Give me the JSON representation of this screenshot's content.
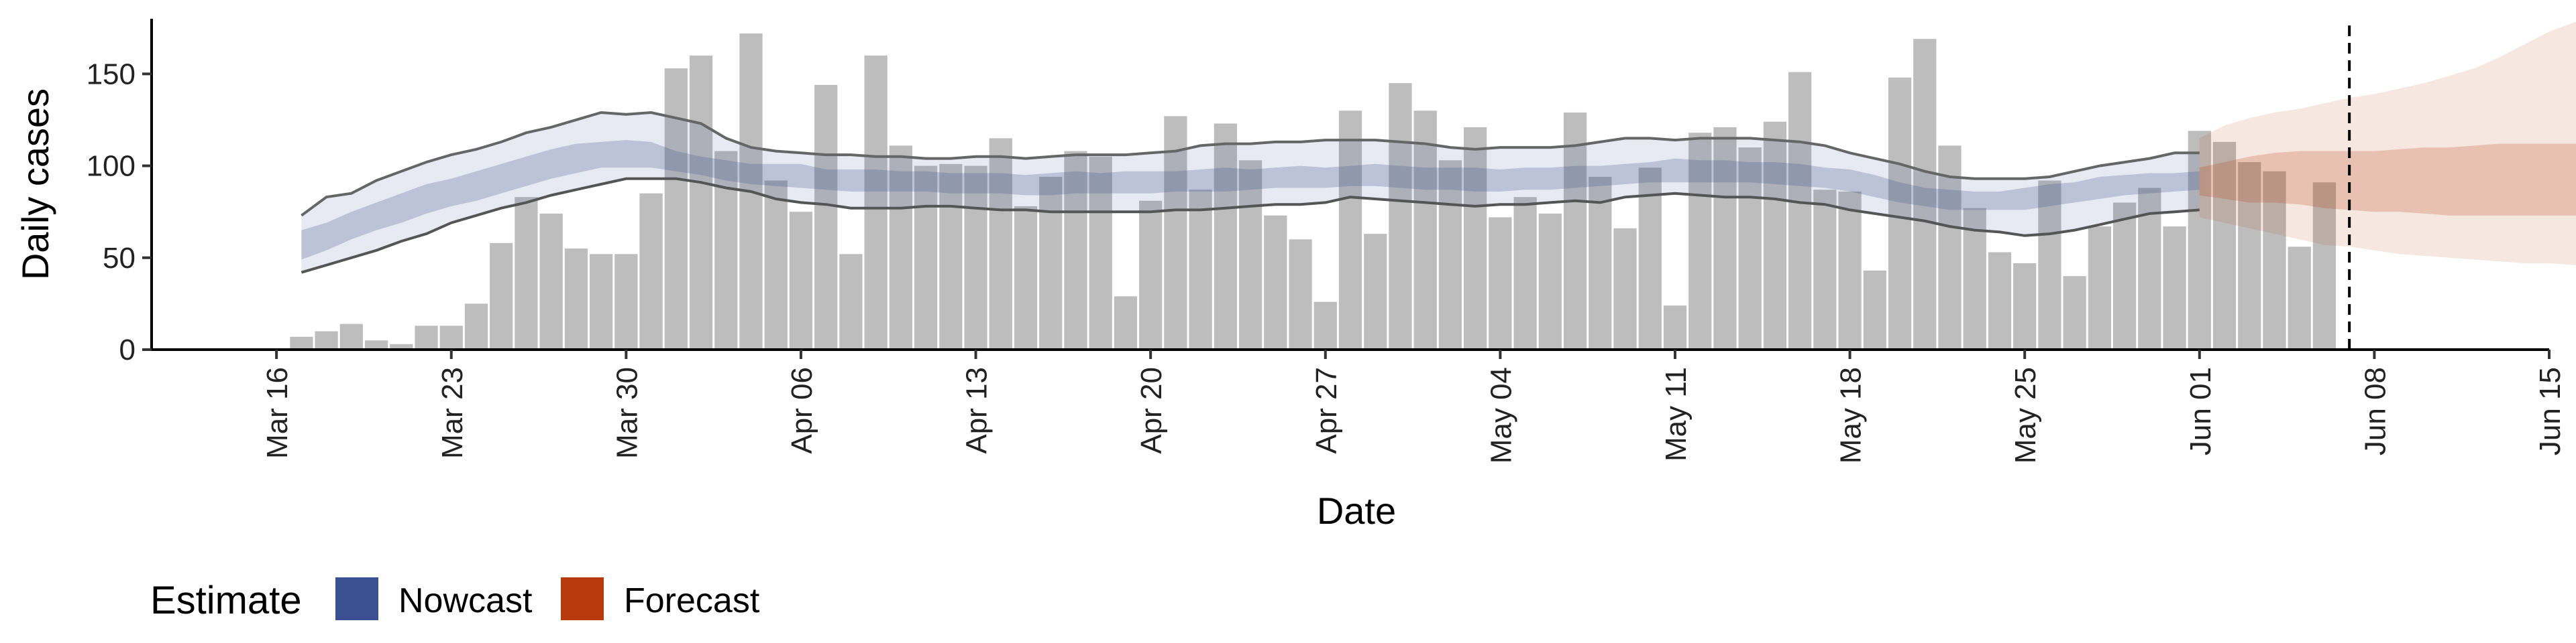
{
  "chart_data": {
    "type": "bar",
    "xlabel": "Date",
    "ylabel": "Daily cases",
    "ylim": [
      0,
      180
    ],
    "x_ticks": [
      "2020-03-16",
      "2020-03-23",
      "2020-03-30",
      "2020-04-06",
      "2020-04-13",
      "2020-04-20",
      "2020-04-27",
      "2020-05-04",
      "2020-05-11",
      "2020-05-18",
      "2020-05-25",
      "2020-06-01",
      "2020-06-08",
      "2020-06-15"
    ],
    "x_tick_labels": [
      "Mar 16",
      "Mar 23",
      "Mar 30",
      "Apr 06",
      "Apr 13",
      "Apr 20",
      "Apr 27",
      "May 04",
      "May 11",
      "May 18",
      "May 25",
      "Jun 01",
      "Jun 08",
      "Jun 15"
    ],
    "y_ticks": [
      0,
      50,
      100,
      150
    ],
    "bars": {
      "start_date": "2020-03-17",
      "color": "#bdbdbd",
      "values": [
        7,
        10,
        14,
        5,
        3,
        13,
        13,
        25,
        58,
        83,
        74,
        55,
        52,
        52,
        85,
        153,
        160,
        108,
        172,
        92,
        75,
        144,
        52,
        160,
        111,
        100,
        101,
        100,
        115,
        78,
        94,
        108,
        105,
        29,
        81,
        127,
        87,
        123,
        103,
        73,
        60,
        26,
        130,
        63,
        145,
        130,
        103,
        121,
        72,
        83,
        74,
        129,
        94,
        66,
        99,
        24,
        118,
        121,
        110,
        124,
        151,
        87,
        86,
        43,
        148,
        169,
        111,
        77,
        53,
        47,
        92,
        40,
        67,
        80,
        88,
        67,
        119,
        113,
        102,
        97,
        56,
        91
      ]
    },
    "nowcast": {
      "name": "Nowcast",
      "color": "#3a5090",
      "start_date": "2020-03-17",
      "outer_upper": [
        73,
        83,
        85,
        92,
        97,
        102,
        106,
        109,
        113,
        118,
        121,
        125,
        129,
        128,
        129,
        126,
        123,
        115,
        110,
        108,
        107,
        106,
        106,
        105,
        105,
        104,
        104,
        105,
        105,
        104,
        105,
        106,
        106,
        106,
        107,
        108,
        111,
        112,
        112,
        113,
        113,
        114,
        114,
        114,
        113,
        112,
        110,
        109,
        110,
        110,
        110,
        111,
        113,
        115,
        115,
        114,
        115,
        115,
        115,
        114,
        113,
        111,
        107,
        104,
        101,
        97,
        94,
        93,
        93,
        93,
        94,
        97,
        100,
        102,
        104,
        107,
        107
      ],
      "outer_lower": [
        42,
        46,
        50,
        54,
        59,
        63,
        69,
        73,
        77,
        80,
        84,
        87,
        90,
        93,
        93,
        93,
        91,
        88,
        86,
        82,
        80,
        79,
        77,
        77,
        77,
        78,
        78,
        77,
        76,
        76,
        75,
        75,
        75,
        75,
        75,
        76,
        76,
        77,
        78,
        79,
        79,
        80,
        83,
        82,
        81,
        80,
        79,
        78,
        79,
        79,
        80,
        81,
        80,
        83,
        84,
        85,
        84,
        83,
        83,
        82,
        80,
        79,
        76,
        74,
        72,
        70,
        67,
        65,
        64,
        62,
        63,
        65,
        68,
        71,
        74,
        75,
        76
      ],
      "inner_upper": [
        65,
        69,
        75,
        80,
        85,
        90,
        93,
        97,
        101,
        105,
        109,
        112,
        113,
        114,
        113,
        108,
        105,
        103,
        101,
        101,
        101,
        98,
        98,
        98,
        97,
        97,
        96,
        96,
        96,
        95,
        96,
        97,
        96,
        97,
        97,
        97,
        98,
        99,
        98,
        99,
        100,
        99,
        100,
        101,
        100,
        99,
        99,
        99,
        98,
        99,
        99,
        100,
        100,
        101,
        102,
        104,
        103,
        103,
        102,
        102,
        101,
        99,
        98,
        95,
        91,
        88,
        87,
        86,
        86,
        88,
        90,
        91,
        94,
        95,
        96,
        96,
        97
      ],
      "inner_lower": [
        49,
        54,
        60,
        65,
        69,
        74,
        78,
        81,
        85,
        89,
        93,
        96,
        99,
        99,
        99,
        97,
        95,
        92,
        90,
        89,
        88,
        87,
        86,
        86,
        86,
        86,
        85,
        85,
        85,
        84,
        84,
        85,
        85,
        85,
        85,
        86,
        86,
        86,
        87,
        88,
        88,
        88,
        89,
        89,
        88,
        87,
        87,
        86,
        86,
        87,
        87,
        88,
        89,
        90,
        91,
        91,
        91,
        91,
        91,
        90,
        89,
        88,
        86,
        83,
        80,
        78,
        76,
        76,
        76,
        76,
        78,
        80,
        82,
        84,
        85,
        86,
        87
      ]
    },
    "forecast": {
      "name": "Forecast",
      "color": "#b63a0c",
      "start_date": "2020-06-01",
      "outer_upper": [
        115,
        122,
        126,
        129,
        131,
        134,
        137,
        139,
        142,
        145,
        149,
        153,
        159,
        166,
        173,
        178,
        181,
        185
      ],
      "outer_lower": [
        72,
        69,
        66,
        63,
        60,
        57,
        56,
        54,
        52,
        51,
        50,
        49,
        48,
        47,
        47,
        46,
        46,
        46
      ],
      "inner_upper": [
        99,
        102,
        105,
        107,
        108,
        108,
        108,
        108,
        109,
        110,
        110,
        111,
        112,
        112,
        112,
        112,
        112,
        111
      ],
      "inner_lower": [
        84,
        82,
        80,
        80,
        79,
        77,
        76,
        75,
        75,
        74,
        73,
        73,
        73,
        73,
        73,
        73,
        73,
        73
      ]
    },
    "vline_date": "2020-06-07",
    "legend": {
      "title": "Estimate",
      "position": "bottom-left",
      "items": [
        {
          "label": "Nowcast",
          "color": "#3a5090"
        },
        {
          "label": "Forecast",
          "color": "#b63a0c"
        }
      ]
    },
    "grid": false
  }
}
